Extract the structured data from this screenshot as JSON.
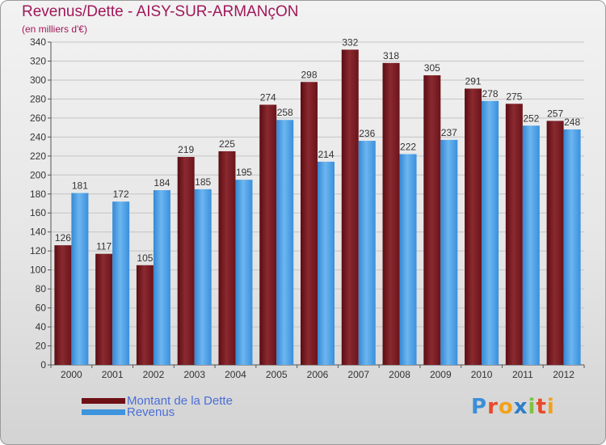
{
  "title": "Revenus/Dette - AISY-SUR-ARMANçON",
  "subtitle": "(en milliers d'€)",
  "legend": [
    {
      "label": "Montant de la Dette",
      "color": "#6e1016"
    },
    {
      "label": "Revenus",
      "color": "#3e94dd"
    }
  ],
  "logo": {
    "text": "Proxiti",
    "letters": [
      "P",
      "r",
      "o",
      "x",
      "i",
      "t",
      "i"
    ],
    "colors": [
      "#3b8fd8",
      "#e84a2a",
      "#f2a21c",
      "#2e7ec9",
      "#7cc243",
      "#e84a2a",
      "#f2a21c"
    ]
  },
  "chart_data": {
    "type": "bar",
    "categories": [
      "2000",
      "2001",
      "2002",
      "2003",
      "2004",
      "2005",
      "2006",
      "2007",
      "2008",
      "2009",
      "2010",
      "2011",
      "2012"
    ],
    "series": [
      {
        "name": "Montant de la Dette",
        "color": "#7a1a22",
        "values": [
          126,
          117,
          105,
          219,
          225,
          274,
          298,
          332,
          318,
          305,
          291,
          275,
          257
        ]
      },
      {
        "name": "Revenus",
        "color": "#48a0e6",
        "values": [
          181,
          172,
          184,
          185,
          195,
          258,
          214,
          236,
          222,
          237,
          278,
          252,
          248
        ]
      }
    ],
    "ylim": [
      0,
      340
    ],
    "ytick_step": 20,
    "grid": true,
    "legend_position": "bottom-left"
  }
}
